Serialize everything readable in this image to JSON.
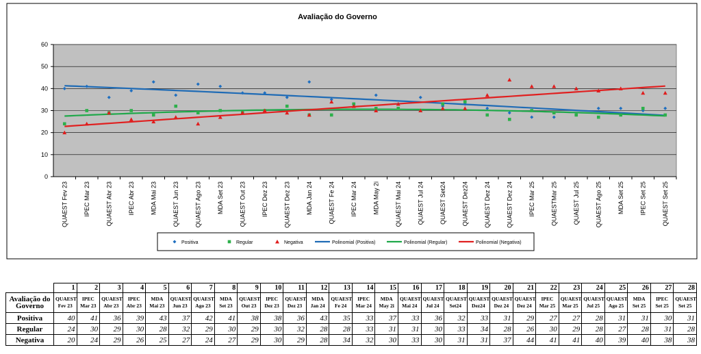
{
  "chart_data": {
    "type": "scatter",
    "title": "Avaliação do Governo",
    "categories": [
      "QUAEST Fev 23",
      "IPEC Mar 23",
      "QUAEST Abr 23",
      "IPEC Abr 23",
      "MDA Mai 23",
      "QUAEST Jun 23",
      "QUAEST Ago 23",
      "MDA Set 23",
      "QUAEST Out 23",
      "IPEC Dez 23",
      "QUAEST Dez 23",
      "MDA Jan 24",
      "QUAEST Fe 24",
      "IPEC Mar 24",
      "MDA May 2i",
      "QUAEST Mai 24",
      "QUAEST Jul 24",
      "QUAEST Set24",
      "QUAEST Dez24",
      "QUAEST Dez 24",
      "QUAEST Dez 24",
      "IPEC Mar 25",
      "QUAESTMar 25",
      "QUAEST Jul 25",
      "QUAEST Ago 25",
      "MDA Set 25",
      "IPEC Set 25",
      "QUAEST Set 25"
    ],
    "series": [
      {
        "name": "Positiva",
        "color": "#1f6fc0",
        "marker": "diamond",
        "values": [
          40,
          41,
          36,
          39,
          43,
          37,
          42,
          41,
          38,
          38,
          36,
          43,
          35,
          33,
          37,
          33,
          36,
          32,
          33,
          31,
          29,
          27,
          27,
          28,
          31,
          31,
          30,
          31
        ]
      },
      {
        "name": "Regular",
        "color": "#2db04b",
        "marker": "square",
        "values": [
          24,
          30,
          29,
          30,
          28,
          32,
          29,
          30,
          29,
          30,
          32,
          28,
          28,
          33,
          31,
          31,
          30,
          33,
          34,
          28,
          26,
          30,
          29,
          28,
          27,
          28,
          31,
          28
        ]
      },
      {
        "name": "Negativa",
        "color": "#e01c1c",
        "marker": "triangle",
        "values": [
          20,
          24,
          29,
          26,
          25,
          27,
          24,
          27,
          29,
          30,
          29,
          28,
          34,
          32,
          30,
          33,
          30,
          31,
          31,
          37,
          44,
          41,
          41,
          40,
          39,
          40,
          38,
          38
        ]
      }
    ],
    "trendlines": [
      {
        "name": "Polinomial (Positiva)",
        "color": "#1f6bb5",
        "order": 2
      },
      {
        "name": "Polinomial (Regular)",
        "color": "#1fa84a",
        "order": 2
      },
      {
        "name": "Polinomial (Negativa)",
        "color": "#e02020",
        "order": 2
      }
    ],
    "ylim": [
      0,
      60
    ],
    "yticks": [
      0,
      10,
      20,
      30,
      40,
      50,
      60
    ],
    "grid": true
  },
  "table": {
    "corner": "Avaliação do Governo",
    "numbers": [
      1,
      2,
      3,
      4,
      5,
      6,
      7,
      8,
      9,
      10,
      11,
      12,
      13,
      14,
      15,
      16,
      17,
      18,
      19,
      20,
      21,
      22,
      23,
      24,
      25,
      26,
      27,
      28
    ],
    "columns": [
      "QUAEST Fev 23",
      "IPEC Mar 23",
      "QUAEST Abr 23",
      "IPEC Abr 23",
      "MDA Mai 23",
      "QUAEST Jun 23",
      "QUAEST Ago 23",
      "MDA Set 23",
      "QUAEST Out 23",
      "IPEC Dez 23",
      "QUAEST Dez 23",
      "MDA Jan 24",
      "QUAEST Fe 24",
      "IPEC Mar 24",
      "MDA May 2i",
      "QUAEST Mai 24",
      "QUAEST Jul 24",
      "QUAEST Set24",
      "QUAEST Dez24",
      "QUAEST Dez 24",
      "QUAEST Dez 24",
      "IPEC Mar 25",
      "QUAEST Mar 25",
      "QUAEST Jul 25",
      "QUAEST Ago 25",
      "MDA Set 25",
      "IPEC Set 25",
      "QUAEST Set 25"
    ]
  }
}
